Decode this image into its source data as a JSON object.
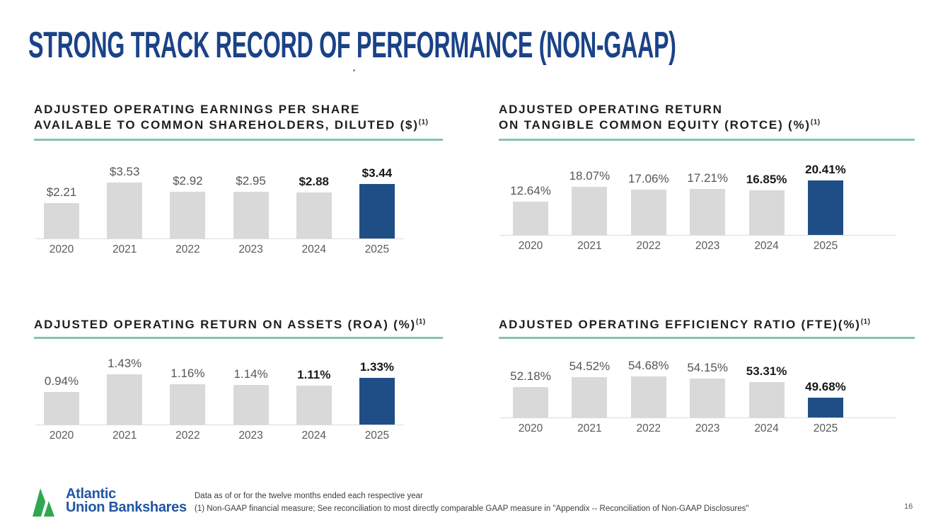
{
  "page": {
    "title": "STRONG TRACK RECORD OF PERFORMANCE (NON-GAAP)",
    "stray_mark": ".",
    "page_number": "16"
  },
  "colors": {
    "title_blue": "#1A4287",
    "accent_blue": "#1F4E87",
    "bar_gray": "#D9D9D9",
    "underline_teal": "#85C3AA",
    "axis_gray": "#DCDCDC",
    "logo_green": "#2FA84F",
    "logo_blue": "#2156A4"
  },
  "chart_data": [
    {
      "type": "bar",
      "title_lines": [
        {
          "text": "ADJUSTED OPERATING EARNINGS PER SHARE",
          "sup": ""
        },
        {
          "text": "AVAILABLE TO COMMON SHAREHOLDERS, DILUTED ($)",
          "sup": "(1)"
        }
      ],
      "categories": [
        "2020",
        "2021",
        "2022",
        "2023",
        "2024",
        "2025"
      ],
      "values": [
        2.21,
        3.53,
        2.92,
        2.95,
        2.88,
        3.44
      ],
      "labels": [
        "$2.21",
        "$3.53",
        "$2.92",
        "$2.95",
        "$2.88",
        "$3.44"
      ],
      "ylim": [
        0,
        4.0
      ],
      "highlight_index": 5,
      "emphasis_index": 4,
      "legend": "none",
      "grid": false
    },
    {
      "type": "bar",
      "title_lines": [
        {
          "text": "ADJUSTED OPERATING RETURN",
          "sup": ""
        },
        {
          "text": "ON TANGIBLE COMMON EQUITY (ROTCE) (%)",
          "sup": "(1)"
        }
      ],
      "categories": [
        "2020",
        "2021",
        "2022",
        "2023",
        "2024",
        "2025"
      ],
      "values": [
        12.64,
        18.07,
        17.06,
        17.21,
        16.85,
        20.41
      ],
      "labels": [
        "12.64%",
        "18.07%",
        "17.06%",
        "17.21%",
        "16.85%",
        "20.41%"
      ],
      "ylim": [
        0,
        24
      ],
      "highlight_index": 5,
      "emphasis_index": 4,
      "legend": "none",
      "grid": false
    },
    {
      "type": "bar",
      "title_lines": [
        {
          "text": "ADJUSTED OPERATING RETURN ON ASSETS (ROA) (%)",
          "sup": "(1)"
        }
      ],
      "categories": [
        "2020",
        "2021",
        "2022",
        "2023",
        "2024",
        "2025"
      ],
      "values": [
        0.94,
        1.43,
        1.16,
        1.14,
        1.11,
        1.33
      ],
      "labels": [
        "0.94%",
        "1.43%",
        "1.16%",
        "1.14%",
        "1.11%",
        "1.33%"
      ],
      "ylim": [
        0,
        1.82
      ],
      "highlight_index": 5,
      "emphasis_index": 4,
      "legend": "none",
      "grid": false
    },
    {
      "type": "bar",
      "title_lines": [
        {
          "text": "ADJUSTED OPERATING EFFICIENCY RATIO (FTE)(%)",
          "sup": "(1)"
        }
      ],
      "categories": [
        "2020",
        "2021",
        "2022",
        "2023",
        "2024",
        "2025"
      ],
      "values": [
        52.18,
        54.52,
        54.68,
        54.15,
        53.31,
        49.68
      ],
      "labels": [
        "52.18%",
        "54.52%",
        "54.68%",
        "54.15%",
        "53.31%",
        "49.68%"
      ],
      "ylim": [
        45,
        60
      ],
      "highlight_index": 5,
      "emphasis_index": 4,
      "legend": "none",
      "grid": false
    }
  ],
  "footer": {
    "logo_line1": "Atlantic",
    "logo_line2": "Union Bankshares",
    "footnote1": "Data as of or for the twelve months ended each respective year",
    "footnote2": "(1) Non-GAAP financial measure; See reconciliation to most directly comparable GAAP measure in \"Appendix -- Reconciliation of Non-GAAP Disclosures\""
  }
}
